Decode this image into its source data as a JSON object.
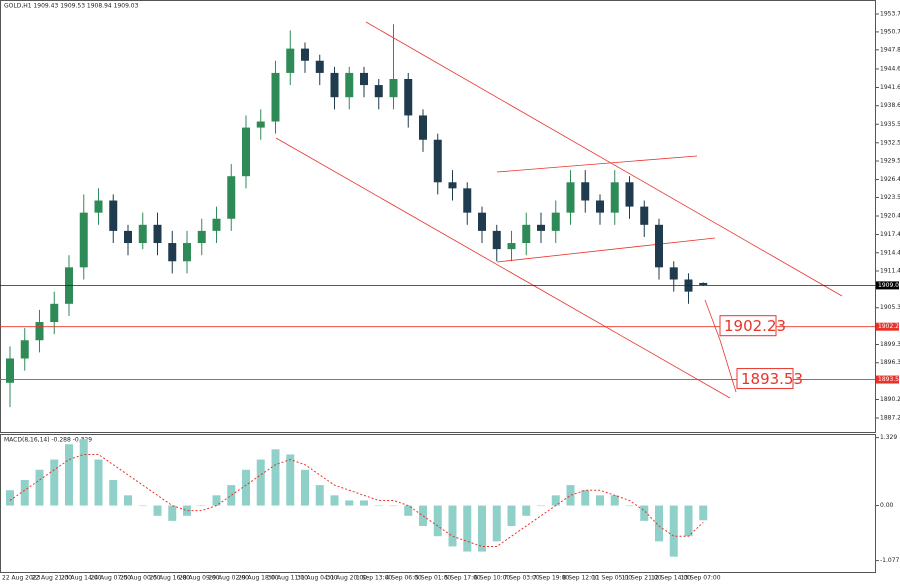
{
  "chart_data": [
    {
      "type": "candlestick",
      "title": "GOLD,H1 1909.43 1909.53 1908.94 1909.03",
      "categories": [
        "22 Aug 2023",
        null,
        "22 Aug 21:00",
        null,
        "23 Aug 14:00",
        null,
        "24 Aug 07:00",
        null,
        "25 Aug 00:00",
        null,
        "25 Aug 16:00",
        null,
        "28 Aug 09:00",
        null,
        "29 Aug 02:00",
        null,
        "29 Aug 18:00",
        null,
        "30 Aug 11:00",
        null,
        "31 Aug 04:00",
        null,
        "31 Aug 20:00",
        null,
        "1 Sep 13:00",
        null,
        "4 Sep 06:00",
        null,
        "5 Sep 01:00",
        null,
        "5 Sep 17:00",
        null,
        "6 Sep 10:00",
        null,
        "7 Sep 03:00",
        null,
        "7 Sep 19:00",
        null,
        "8 Sep 12:00",
        null,
        "11 Sep 05:00",
        null,
        "11 Sep 21:00",
        null,
        "12 Sep 14:00",
        null,
        "13 Sep 07:00",
        null
      ],
      "open": [
        1893,
        1897,
        1900,
        1903,
        1906,
        1912,
        1921,
        1923,
        1918,
        1916,
        1919,
        1916,
        1913,
        1916,
        1918,
        1920,
        1927,
        1935,
        1936,
        1944,
        1948,
        1946,
        1944,
        1940,
        1944,
        1942,
        1940,
        1943,
        1937,
        1933,
        1926,
        1925,
        1921,
        1918,
        1915,
        1916,
        1919,
        1918,
        1921,
        1926,
        1923,
        1921,
        1926,
        1922,
        1919,
        1912,
        1910,
        1909.43
      ],
      "high": [
        1899,
        1902,
        1905,
        1908,
        1914,
        1924,
        1925,
        1924,
        1919,
        1921,
        1921,
        1918,
        1918,
        1920,
        1922,
        1929,
        1937,
        1938,
        1946,
        1951,
        1949,
        1947,
        1945,
        1945,
        1945,
        1943,
        1952,
        1944,
        1938,
        1934,
        1928,
        1926,
        1922,
        1919,
        1918,
        1921,
        1921,
        1923,
        1928,
        1928,
        1924,
        1928,
        1927,
        1923,
        1920,
        1913,
        1911,
        1909.53
      ],
      "low": [
        1889,
        1895,
        1898,
        1901,
        1904,
        1910,
        1919,
        1916,
        1914,
        1915,
        1914,
        1911,
        1911,
        1914,
        1916,
        1918,
        1925,
        1933,
        1934,
        1942,
        1944,
        1942,
        1938,
        1938,
        1940,
        1938,
        1938,
        1935,
        1931,
        1924,
        1923,
        1919,
        1916,
        1913,
        1913,
        1914,
        1916,
        1916,
        1919,
        1921,
        1919,
        1919,
        1920,
        1917,
        1910,
        1908,
        1906,
        1908.94
      ],
      "close": [
        1897,
        1900,
        1903,
        1906,
        1912,
        1921,
        1923,
        1918,
        1916,
        1919,
        1916,
        1913,
        1916,
        1918,
        1920,
        1927,
        1935,
        1936,
        1944,
        1948,
        1946,
        1944,
        1940,
        1944,
        1942,
        1940,
        1943,
        1937,
        1933,
        1926,
        1925,
        1921,
        1918,
        1915,
        1916,
        1919,
        1918,
        1921,
        1926,
        1923,
        1921,
        1926,
        1922,
        1919,
        1912,
        1910,
        1908,
        1909.03
      ],
      "up_color": "#2e8b57",
      "down_color": "#1f3b4d",
      "ylim": [
        1884.9,
        1956.0
      ],
      "yticks": [
        {
          "value": 1953.7,
          "label": "1953.70"
        },
        {
          "value": 1950.75,
          "label": "1950.75"
        },
        {
          "value": 1947.8,
          "label": "1947.80"
        },
        {
          "value": 1944.65,
          "label": "1944.65"
        },
        {
          "value": 1941.6,
          "label": "1941.60"
        },
        {
          "value": 1938.6,
          "label": "1938.60"
        },
        {
          "value": 1935.55,
          "label": "1935.55"
        },
        {
          "value": 1932.5,
          "label": "1932.50"
        },
        {
          "value": 1929.5,
          "label": "1929.50"
        },
        {
          "value": 1926.45,
          "label": "1926.45"
        },
        {
          "value": 1923.5,
          "label": "1923.50"
        },
        {
          "value": 1920.45,
          "label": "1920.45"
        },
        {
          "value": 1917.4,
          "label": "1917.40"
        },
        {
          "value": 1914.4,
          "label": "1914.40"
        },
        {
          "value": 1911.4,
          "label": "1911.40"
        },
        {
          "value": 1905.35,
          "label": "1905.35"
        },
        {
          "value": 1899.3,
          "label": "1899.30"
        },
        {
          "value": 1896.3,
          "label": "1896.30"
        },
        {
          "value": 1890.25,
          "label": "1890.25"
        },
        {
          "value": 1887.2,
          "label": "1887.20"
        }
      ],
      "last_price": {
        "value": 1909.03,
        "label": "1909.03"
      },
      "annotations": [
        {
          "value": 1902.23,
          "label": "1902.23"
        },
        {
          "value": 1893.53,
          "label": "1893.53"
        }
      ],
      "annotation_color": "#e8332a"
    },
    {
      "type": "macd",
      "title": "MACD(8,16,14) -0.288 -0.329",
      "histogram": [
        0.3,
        0.5,
        0.7,
        0.9,
        1.2,
        1.3,
        0.9,
        0.5,
        0.2,
        0.0,
        -0.2,
        -0.3,
        -0.2,
        0.0,
        0.2,
        0.4,
        0.7,
        0.9,
        1.1,
        1.0,
        0.7,
        0.4,
        0.2,
        0.1,
        0.1,
        0.0,
        0.0,
        -0.2,
        -0.4,
        -0.6,
        -0.8,
        -0.9,
        -0.9,
        -0.7,
        -0.4,
        -0.2,
        0.0,
        0.2,
        0.4,
        0.3,
        0.2,
        0.2,
        0.0,
        -0.3,
        -0.7,
        -1.0,
        -0.6,
        -0.288
      ],
      "signal": [
        0.1,
        0.3,
        0.5,
        0.7,
        0.9,
        1.0,
        1.0,
        0.8,
        0.6,
        0.4,
        0.2,
        0.0,
        -0.1,
        -0.1,
        0.0,
        0.2,
        0.4,
        0.6,
        0.8,
        0.9,
        0.8,
        0.6,
        0.4,
        0.3,
        0.2,
        0.1,
        0.1,
        0.0,
        -0.2,
        -0.4,
        -0.6,
        -0.7,
        -0.8,
        -0.8,
        -0.6,
        -0.4,
        -0.2,
        0.0,
        0.2,
        0.3,
        0.3,
        0.2,
        0.1,
        -0.1,
        -0.4,
        -0.6,
        -0.6,
        -0.329
      ],
      "histogram_color": "#8fd0c8",
      "signal_color": "#e8332a",
      "ylim": [
        -1.3,
        1.4
      ],
      "yticks": [
        {
          "value": 1.329,
          "label": "1.329"
        },
        {
          "value": 0,
          "label": "0.00"
        },
        {
          "value": -1.077,
          "label": "-1.077"
        }
      ]
    }
  ]
}
